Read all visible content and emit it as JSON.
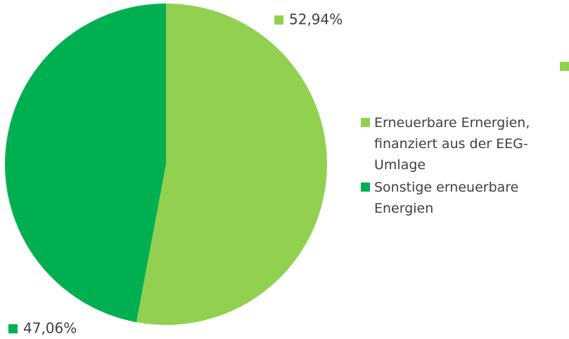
{
  "chart_data": {
    "type": "pie",
    "categories": [
      "Erneuerbare Ernergien, finanziert aus der EEG-Umlage",
      "Sonstige erneuerbare Energien"
    ],
    "values": [
      52.94,
      47.06
    ],
    "value_labels": [
      "52,94%",
      "47,06%"
    ],
    "colors": [
      "#92d050",
      "#00b050"
    ]
  }
}
